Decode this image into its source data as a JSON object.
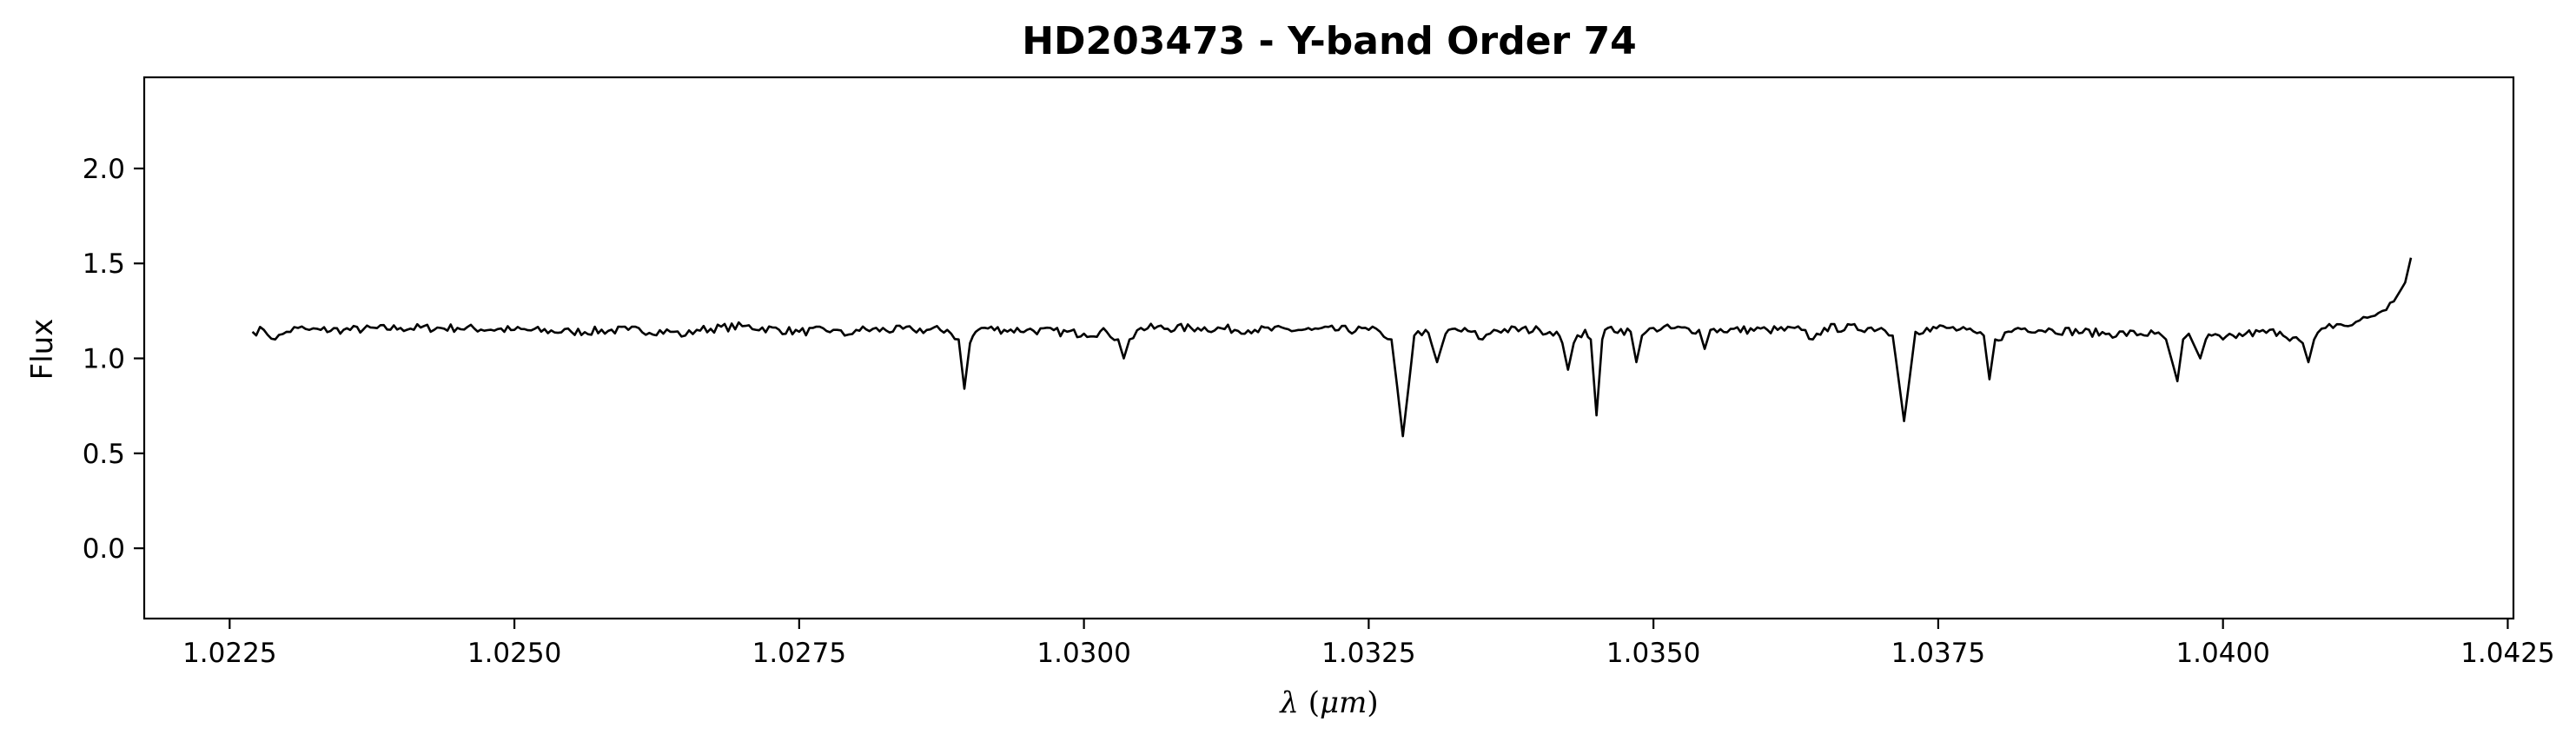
{
  "chart_data": {
    "type": "line",
    "title": "HD203473 - Y-band Order 74",
    "xlabel": "λ (μm)",
    "xlabel_parts": {
      "symbol": "λ",
      "unit": "μm"
    },
    "ylabel": "Flux",
    "xlim": [
      1.02175,
      1.04255
    ],
    "ylim": [
      -0.37,
      2.48
    ],
    "xticks": [
      1.0225,
      1.025,
      1.0275,
      1.03,
      1.0325,
      1.035,
      1.0375,
      1.04,
      1.0425
    ],
    "xtick_labels": [
      "1.0225",
      "1.0250",
      "1.0275",
      "1.0300",
      "1.0325",
      "1.0350",
      "1.0375",
      "1.0400",
      "1.0425"
    ],
    "yticks": [
      0.0,
      0.5,
      1.0,
      1.5,
      2.0
    ],
    "ytick_labels": [
      "0.0",
      "0.5",
      "1.0",
      "1.5",
      "2.0"
    ],
    "grid": false,
    "legend": "none",
    "line_color": "#000000",
    "series": [
      {
        "x": [
          1.0227,
          1.0228,
          1.0229,
          1.023,
          1.0231,
          1.0232,
          1.0233,
          1.0235,
          1.024,
          1.0245,
          1.025,
          1.0255,
          1.026,
          1.0264,
          1.0265,
          1.0266,
          1.027,
          1.0275,
          1.0278,
          1.0279,
          1.028,
          1.0285,
          1.0288,
          1.0289,
          1.02895,
          1.029,
          1.02905,
          1.0291,
          1.0293,
          1.0295,
          1.03,
          1.0302,
          1.0303,
          1.03035,
          1.0304,
          1.0305,
          1.031,
          1.0315,
          1.032,
          1.0325,
          1.0326,
          1.0327,
          1.03275,
          1.0328,
          1.03285,
          1.0329,
          1.033,
          1.03305,
          1.0331,
          1.03315,
          1.0332,
          1.0334,
          1.0335,
          1.0336,
          1.034,
          1.03415,
          1.0342,
          1.03425,
          1.0343,
          1.0344,
          1.03445,
          1.0345,
          1.03455,
          1.0346,
          1.0348,
          1.03485,
          1.0349,
          1.035,
          1.0354,
          1.03545,
          1.0355,
          1.036,
          1.0363,
          1.0364,
          1.0365,
          1.037,
          1.0371,
          1.03715,
          1.0372,
          1.03725,
          1.0373,
          1.0374,
          1.0376,
          1.0379,
          1.03795,
          1.038,
          1.0382,
          1.0385,
          1.039,
          1.0394,
          1.0395,
          1.0396,
          1.03965,
          1.0397,
          1.0398,
          1.03985,
          1.0399,
          1.04,
          1.0402,
          1.0405,
          1.0407,
          1.04075,
          1.0408,
          1.0409,
          1.041,
          1.0411,
          1.0412,
          1.0413,
          1.0414,
          1.0415,
          1.0416,
          1.04165
        ],
        "y": [
          1.14,
          1.15,
          1.1,
          1.14,
          1.16,
          1.15,
          1.15,
          1.15,
          1.16,
          1.16,
          1.15,
          1.14,
          1.15,
          1.14,
          1.12,
          1.15,
          1.17,
          1.14,
          1.15,
          1.12,
          1.15,
          1.15,
          1.15,
          1.1,
          0.84,
          1.08,
          1.14,
          1.16,
          1.15,
          1.15,
          1.13,
          1.14,
          1.1,
          1.0,
          1.1,
          1.16,
          1.16,
          1.15,
          1.15,
          1.15,
          1.14,
          1.1,
          0.85,
          0.59,
          0.85,
          1.12,
          1.15,
          1.08,
          0.98,
          1.08,
          1.15,
          1.14,
          1.1,
          1.15,
          1.15,
          1.14,
          1.08,
          0.94,
          1.08,
          1.15,
          1.1,
          0.7,
          1.1,
          1.16,
          1.14,
          0.98,
          1.12,
          1.16,
          1.15,
          1.05,
          1.15,
          1.15,
          1.15,
          1.1,
          1.16,
          1.16,
          1.12,
          0.9,
          0.67,
          0.9,
          1.14,
          1.16,
          1.16,
          1.12,
          0.89,
          1.1,
          1.16,
          1.15,
          1.13,
          1.13,
          1.1,
          0.88,
          1.1,
          1.13,
          1.0,
          1.1,
          1.12,
          1.1,
          1.13,
          1.14,
          1.08,
          0.98,
          1.1,
          1.16,
          1.18,
          1.17,
          1.2,
          1.22,
          1.25,
          1.3,
          1.4,
          1.53
        ]
      }
    ]
  }
}
